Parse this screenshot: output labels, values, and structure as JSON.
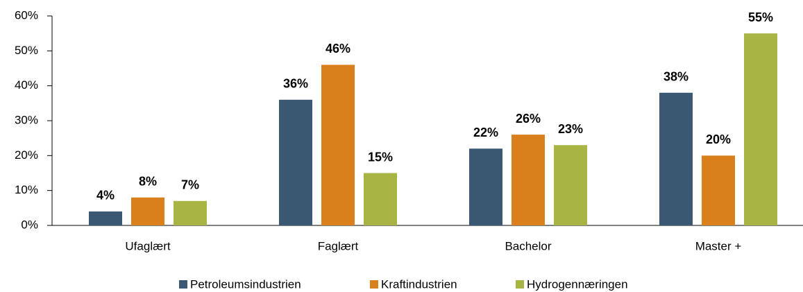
{
  "chart_data": {
    "type": "bar",
    "categories": [
      "Ufaglært",
      "Faglært",
      "Bachelor",
      "Master +"
    ],
    "series": [
      {
        "name": "Petroleumsindustrien",
        "color": "#3b5873",
        "values": [
          4,
          36,
          22,
          38
        ],
        "value_labels": [
          "4%",
          "36%",
          "22%",
          "38%"
        ]
      },
      {
        "name": "Kraftindustrien",
        "color": "#d97f1c",
        "values": [
          8,
          46,
          26,
          20
        ],
        "value_labels": [
          "8%",
          "46%",
          "26%",
          "20%"
        ]
      },
      {
        "name": "Hydrogennæringen",
        "color": "#a8b545",
        "values": [
          7,
          15,
          23,
          55
        ],
        "value_labels": [
          "7%",
          "15%",
          "23%",
          "55%"
        ]
      }
    ],
    "ylim": [
      0,
      60
    ],
    "yticks": [
      {
        "value": 0,
        "label": "0%"
      },
      {
        "value": 10,
        "label": "10%"
      },
      {
        "value": 20,
        "label": "20%"
      },
      {
        "value": 30,
        "label": "30%"
      },
      {
        "value": 40,
        "label": "40%"
      },
      {
        "value": 50,
        "label": "50%"
      },
      {
        "value": 60,
        "label": "60%"
      }
    ],
    "legend": "bottom"
  }
}
